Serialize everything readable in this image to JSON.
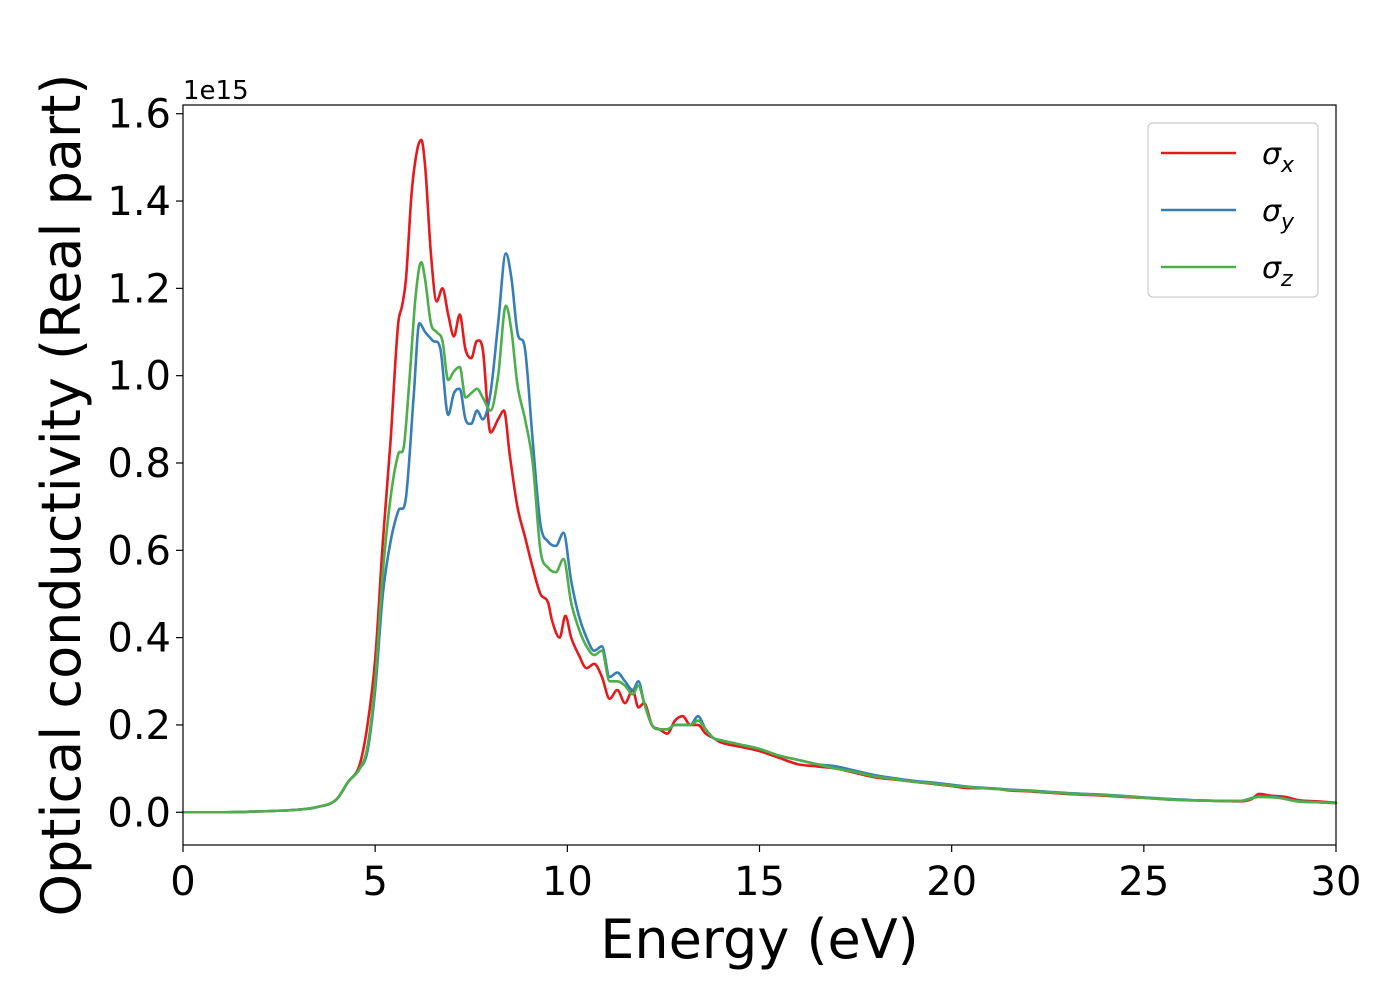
{
  "chart_data": {
    "type": "line",
    "xlabel": "Energy (eV)",
    "ylabel": "Optical conductivity (Real part)",
    "y_offset_label": "1e15",
    "xlim": [
      0,
      30
    ],
    "ylim": [
      -0.075,
      1.62
    ],
    "x_ticks": [
      0,
      5,
      10,
      15,
      20,
      25,
      30
    ],
    "y_ticks": [
      0.0,
      0.2,
      0.4,
      0.6,
      0.8,
      1.0,
      1.2,
      1.4,
      1.6
    ],
    "y_tick_labels": [
      "0.0",
      "0.2",
      "0.4",
      "0.6",
      "0.8",
      "1.0",
      "1.2",
      "1.4",
      "1.6"
    ],
    "grid": false,
    "legend_position": "top-right",
    "series": [
      {
        "name": "σx",
        "legend": {
          "base": "σ",
          "sub": "x"
        },
        "color": "#e41a1c",
        "x": [
          0,
          1,
          2,
          3,
          3.5,
          4.0,
          4.3,
          4.6,
          4.8,
          5.0,
          5.2,
          5.4,
          5.6,
          5.7,
          5.8,
          5.95,
          6.1,
          6.2,
          6.3,
          6.45,
          6.6,
          6.75,
          6.9,
          7.05,
          7.2,
          7.35,
          7.5,
          7.65,
          7.8,
          8.0,
          8.2,
          8.35,
          8.5,
          8.7,
          8.9,
          9.1,
          9.3,
          9.5,
          9.6,
          9.8,
          9.95,
          10.1,
          10.3,
          10.5,
          10.7,
          10.9,
          11.1,
          11.3,
          11.5,
          11.7,
          11.85,
          12.0,
          12.2,
          12.4,
          12.6,
          12.8,
          13.0,
          13.2,
          13.4,
          13.6,
          13.8,
          14.0,
          14.5,
          15.0,
          15.5,
          16.0,
          16.5,
          17.0,
          17.5,
          18.0,
          18.5,
          19.0,
          19.5,
          20.0,
          20.5,
          21.0,
          21.5,
          22.0,
          22.5,
          23.0,
          23.5,
          24.0,
          24.5,
          25.0,
          25.5,
          26.0,
          26.5,
          27.0,
          27.5,
          27.8,
          28.0,
          28.3,
          28.7,
          29.0,
          29.5,
          30.0
        ],
        "y": [
          0.0,
          0.0,
          0.002,
          0.006,
          0.012,
          0.03,
          0.07,
          0.11,
          0.2,
          0.35,
          0.62,
          0.85,
          1.12,
          1.16,
          1.22,
          1.42,
          1.52,
          1.54,
          1.48,
          1.28,
          1.17,
          1.2,
          1.14,
          1.09,
          1.14,
          1.06,
          1.04,
          1.08,
          1.06,
          0.87,
          0.9,
          0.92,
          0.82,
          0.7,
          0.63,
          0.56,
          0.5,
          0.48,
          0.44,
          0.4,
          0.45,
          0.4,
          0.36,
          0.33,
          0.34,
          0.31,
          0.26,
          0.28,
          0.25,
          0.28,
          0.24,
          0.25,
          0.2,
          0.19,
          0.18,
          0.21,
          0.22,
          0.2,
          0.2,
          0.18,
          0.17,
          0.16,
          0.15,
          0.14,
          0.125,
          0.11,
          0.105,
          0.1,
          0.09,
          0.08,
          0.075,
          0.07,
          0.065,
          0.06,
          0.055,
          0.055,
          0.05,
          0.048,
          0.045,
          0.042,
          0.04,
          0.038,
          0.035,
          0.033,
          0.03,
          0.028,
          0.027,
          0.026,
          0.025,
          0.03,
          0.042,
          0.038,
          0.035,
          0.028,
          0.025,
          0.022
        ]
      },
      {
        "name": "σy",
        "legend": {
          "base": "σ",
          "sub": "y"
        },
        "color": "#377eb8",
        "x": [
          0,
          1,
          2,
          3,
          3.5,
          4.0,
          4.3,
          4.6,
          4.8,
          5.0,
          5.2,
          5.4,
          5.6,
          5.8,
          6.0,
          6.15,
          6.3,
          6.5,
          6.7,
          6.9,
          7.05,
          7.2,
          7.35,
          7.5,
          7.65,
          7.8,
          8.0,
          8.2,
          8.4,
          8.55,
          8.7,
          8.9,
          9.1,
          9.3,
          9.5,
          9.7,
          9.9,
          10.1,
          10.3,
          10.5,
          10.7,
          10.9,
          11.1,
          11.3,
          11.5,
          11.7,
          11.85,
          12.0,
          12.2,
          12.4,
          12.6,
          12.8,
          13.0,
          13.2,
          13.4,
          13.6,
          13.8,
          14.0,
          14.5,
          15.0,
          15.5,
          16.0,
          16.5,
          17.0,
          17.5,
          18.0,
          18.5,
          19.0,
          19.5,
          20.0,
          20.5,
          21.0,
          21.5,
          22.0,
          22.5,
          23.0,
          23.5,
          24.0,
          24.5,
          25.0,
          25.5,
          26.0,
          26.5,
          27.0,
          27.5,
          28.0,
          28.5,
          29.0,
          29.5,
          30.0
        ],
        "y": [
          0.0,
          0.0,
          0.002,
          0.006,
          0.012,
          0.03,
          0.07,
          0.1,
          0.14,
          0.28,
          0.5,
          0.62,
          0.69,
          0.72,
          0.95,
          1.12,
          1.1,
          1.08,
          1.06,
          0.91,
          0.96,
          0.97,
          0.9,
          0.89,
          0.92,
          0.9,
          0.96,
          1.12,
          1.28,
          1.22,
          1.1,
          1.06,
          0.85,
          0.66,
          0.62,
          0.61,
          0.64,
          0.53,
          0.45,
          0.4,
          0.37,
          0.38,
          0.31,
          0.32,
          0.3,
          0.28,
          0.3,
          0.25,
          0.2,
          0.19,
          0.19,
          0.2,
          0.2,
          0.2,
          0.22,
          0.19,
          0.17,
          0.165,
          0.155,
          0.145,
          0.13,
          0.12,
          0.11,
          0.105,
          0.095,
          0.085,
          0.078,
          0.072,
          0.068,
          0.063,
          0.058,
          0.055,
          0.052,
          0.05,
          0.047,
          0.044,
          0.042,
          0.04,
          0.037,
          0.034,
          0.031,
          0.029,
          0.027,
          0.026,
          0.026,
          0.036,
          0.034,
          0.025,
          0.023,
          0.021
        ]
      },
      {
        "name": "σz",
        "legend": {
          "base": "σ",
          "sub": "z"
        },
        "color": "#4daf4a",
        "x": [
          0,
          1,
          2,
          3,
          3.5,
          4.0,
          4.3,
          4.6,
          4.8,
          5.0,
          5.2,
          5.4,
          5.6,
          5.75,
          5.9,
          6.05,
          6.2,
          6.3,
          6.45,
          6.6,
          6.75,
          6.9,
          7.05,
          7.2,
          7.35,
          7.5,
          7.65,
          7.8,
          8.0,
          8.2,
          8.4,
          8.55,
          8.7,
          8.9,
          9.1,
          9.3,
          9.5,
          9.7,
          9.9,
          10.1,
          10.3,
          10.5,
          10.7,
          10.9,
          11.1,
          11.3,
          11.5,
          11.7,
          11.85,
          12.0,
          12.2,
          12.4,
          12.6,
          12.8,
          13.0,
          13.2,
          13.4,
          13.6,
          13.8,
          14.0,
          14.5,
          15.0,
          15.5,
          16.0,
          16.5,
          17.0,
          17.5,
          18.0,
          18.5,
          19.0,
          19.5,
          20.0,
          20.5,
          21.0,
          21.5,
          22.0,
          22.5,
          23.0,
          23.5,
          24.0,
          24.5,
          25.0,
          25.5,
          26.0,
          26.5,
          27.0,
          27.5,
          28.0,
          28.5,
          29.0,
          29.5,
          30.0
        ],
        "y": [
          0.0,
          0.0,
          0.002,
          0.006,
          0.012,
          0.03,
          0.07,
          0.1,
          0.15,
          0.3,
          0.55,
          0.72,
          0.82,
          0.84,
          1.0,
          1.18,
          1.26,
          1.22,
          1.12,
          1.1,
          1.08,
          0.99,
          1.01,
          1.02,
          0.95,
          0.96,
          0.97,
          0.95,
          0.92,
          1.0,
          1.16,
          1.1,
          0.98,
          0.9,
          0.8,
          0.6,
          0.56,
          0.55,
          0.58,
          0.48,
          0.42,
          0.38,
          0.36,
          0.37,
          0.3,
          0.3,
          0.29,
          0.27,
          0.29,
          0.25,
          0.2,
          0.19,
          0.19,
          0.2,
          0.2,
          0.2,
          0.21,
          0.19,
          0.17,
          0.165,
          0.155,
          0.145,
          0.13,
          0.12,
          0.11,
          0.1,
          0.092,
          0.082,
          0.076,
          0.07,
          0.066,
          0.061,
          0.057,
          0.054,
          0.051,
          0.049,
          0.046,
          0.043,
          0.041,
          0.039,
          0.036,
          0.033,
          0.03,
          0.028,
          0.027,
          0.026,
          0.026,
          0.035,
          0.033,
          0.025,
          0.023,
          0.021
        ]
      }
    ]
  }
}
